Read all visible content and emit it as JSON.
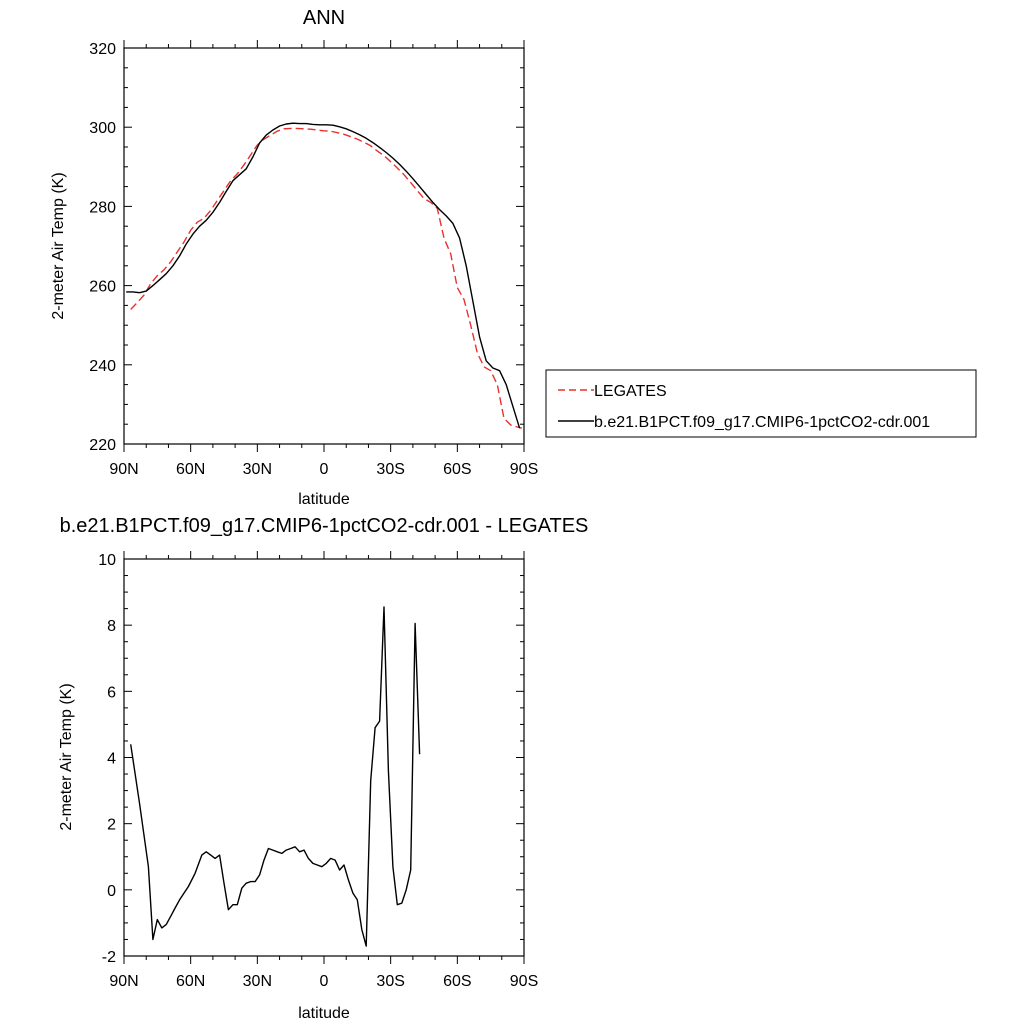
{
  "chart_data": [
    {
      "type": "line",
      "title": "ANN",
      "xlabel": "latitude",
      "ylabel": "2-meter Air Temp (K)",
      "xlim": [
        90,
        -90
      ],
      "ylim": [
        220,
        320
      ],
      "x_ticks": [
        {
          "value": 90,
          "label": "90N"
        },
        {
          "value": 60,
          "label": "60N"
        },
        {
          "value": 30,
          "label": "30N"
        },
        {
          "value": 0,
          "label": "0"
        },
        {
          "value": -30,
          "label": "30S"
        },
        {
          "value": -60,
          "label": "60S"
        },
        {
          "value": -90,
          "label": "90S"
        }
      ],
      "y_ticks": [
        220,
        240,
        260,
        280,
        300,
        320
      ],
      "legend": {
        "placement": "right"
      },
      "series": [
        {
          "name": "LEGATES",
          "color": "#e8312f",
          "dash": "dashed",
          "x": [
            87,
            84,
            81,
            78,
            75,
            72,
            69,
            66,
            63,
            60,
            57,
            54,
            51,
            48,
            45,
            42,
            39,
            36,
            33,
            30,
            27,
            24,
            21,
            18,
            15,
            12,
            9,
            6,
            3,
            0,
            -3,
            -6,
            -9,
            -12,
            -15,
            -18,
            -21,
            -24,
            -27,
            -30,
            -33,
            -36,
            -39,
            -42,
            -45,
            -48,
            -51,
            -54,
            -57,
            -60,
            -63,
            -66,
            -69,
            -72,
            -75,
            -78,
            -81,
            -84,
            -87,
            -89
          ],
          "values": [
            254.0,
            255.7,
            257.6,
            260.5,
            262.5,
            264.0,
            266.0,
            268.5,
            271.0,
            274.0,
            276.0,
            277.0,
            279.0,
            281.5,
            284.0,
            286.5,
            288.2,
            290.5,
            293.0,
            295.5,
            297.0,
            298.0,
            299.0,
            299.6,
            299.7,
            299.7,
            299.6,
            299.5,
            299.3,
            299.1,
            299.0,
            298.6,
            298.2,
            297.6,
            297.0,
            296.2,
            295.3,
            294.0,
            292.8,
            291.3,
            289.7,
            288.0,
            286.0,
            284.0,
            282.0,
            281.0,
            279.5,
            272.0,
            268.0,
            259.5,
            256.5,
            250.0,
            243.0,
            239.5,
            238.5,
            235.0,
            226.5,
            224.8,
            224.3,
            224.0
          ]
        },
        {
          "name": "b.e21.B1PCT.f09_g17.CMIP6-1pctCO2-cdr.001",
          "color": "#000000",
          "dash": "solid",
          "x": [
            89,
            86,
            83,
            80,
            77,
            74,
            71,
            68,
            65,
            62,
            59,
            56,
            53,
            50,
            47,
            44,
            41,
            38,
            35,
            32,
            29,
            26,
            23,
            20,
            17,
            14,
            11,
            8,
            5,
            2,
            -1,
            -4,
            -7,
            -10,
            -13,
            -16,
            -19,
            -22,
            -25,
            -28,
            -31,
            -34,
            -37,
            -40,
            -43,
            -46,
            -49,
            -52,
            -55,
            -58,
            -61,
            -64,
            -67,
            -70,
            -73,
            -76,
            -79,
            -82,
            -85,
            -88
          ],
          "values": [
            258.4,
            258.4,
            258.2,
            258.6,
            260.0,
            261.5,
            263.0,
            265.0,
            267.5,
            270.5,
            273.0,
            275.0,
            276.5,
            278.5,
            281.0,
            283.8,
            286.5,
            288.0,
            289.5,
            292.5,
            296.0,
            298.0,
            299.3,
            300.3,
            300.8,
            301.0,
            300.9,
            300.9,
            300.7,
            300.6,
            300.6,
            300.5,
            300.1,
            299.6,
            298.9,
            298.1,
            297.2,
            296.1,
            294.9,
            293.6,
            292.2,
            290.6,
            288.9,
            287.0,
            285.0,
            283.0,
            281.0,
            279.2,
            277.6,
            275.7,
            272.0,
            265.0,
            256.0,
            247.0,
            241.0,
            239.2,
            238.5,
            235.0,
            229.5,
            224.0
          ]
        }
      ]
    },
    {
      "type": "line",
      "title": "b.e21.B1PCT.f09_g17.CMIP6-1pctCO2-cdr.001 - LEGATES",
      "xlabel": "latitude",
      "ylabel": "2-meter Air Temp (K)",
      "xlim": [
        90,
        -90
      ],
      "ylim": [
        -2,
        10
      ],
      "x_ticks": [
        {
          "value": 90,
          "label": "90N"
        },
        {
          "value": 60,
          "label": "60N"
        },
        {
          "value": 30,
          "label": "30N"
        },
        {
          "value": 0,
          "label": "0"
        },
        {
          "value": -30,
          "label": "30S"
        },
        {
          "value": -60,
          "label": "60S"
        },
        {
          "value": -90,
          "label": "90S"
        }
      ],
      "y_ticks": [
        -2,
        0,
        2,
        4,
        6,
        8,
        10
      ],
      "series": [
        {
          "color": "#000000",
          "dash": "solid",
          "x": [
            87,
            83,
            79,
            77,
            75,
            73,
            71,
            69,
            67,
            65,
            63,
            61,
            58,
            55,
            53,
            51,
            49,
            47,
            45,
            43,
            41,
            39,
            37,
            35,
            33,
            31,
            29,
            27,
            25,
            23,
            21,
            19,
            17,
            15,
            13,
            11,
            9,
            7,
            5,
            3,
            1,
            -1,
            -3,
            -5,
            -7,
            -9,
            -11,
            -13,
            -15,
            -17,
            -19,
            -21,
            -23,
            -25,
            -27,
            -29,
            -31,
            -33,
            -35,
            -37,
            -39,
            -41,
            -43,
            -45,
            -47,
            -49,
            -51,
            -53,
            -55,
            -57,
            -59,
            -62,
            -65,
            -68,
            -71,
            -74,
            -77,
            -80,
            -83,
            -86,
            -89
          ],
          "values": [
            4.4,
            2.6,
            0.7,
            -1.5,
            -0.9,
            -1.15,
            -1.05,
            -0.8,
            -0.55,
            -0.3,
            -0.1,
            0.1,
            0.5,
            1.05,
            1.15,
            1.05,
            0.95,
            1.05,
            0.2,
            -0.6,
            -0.45,
            -0.45,
            0.05,
            0.2,
            0.25,
            0.25,
            0.45,
            0.9,
            1.25,
            1.2,
            1.15,
            1.1,
            1.2,
            1.25,
            1.3,
            1.15,
            1.2,
            0.95,
            0.8,
            0.75,
            0.7,
            0.8,
            0.95,
            0.9,
            0.6,
            0.75,
            0.3,
            -0.1,
            -0.3,
            -1.2,
            -1.7,
            3.3,
            4.9,
            5.1,
            8.55,
            3.6,
            0.7,
            -0.45,
            -0.4,
            0.0,
            0.6,
            8.05,
            4.1,
            null,
            null,
            null,
            null,
            null,
            null,
            null,
            null,
            null,
            null,
            null,
            null,
            null,
            null,
            null,
            null,
            null,
            null
          ]
        }
      ]
    }
  ]
}
